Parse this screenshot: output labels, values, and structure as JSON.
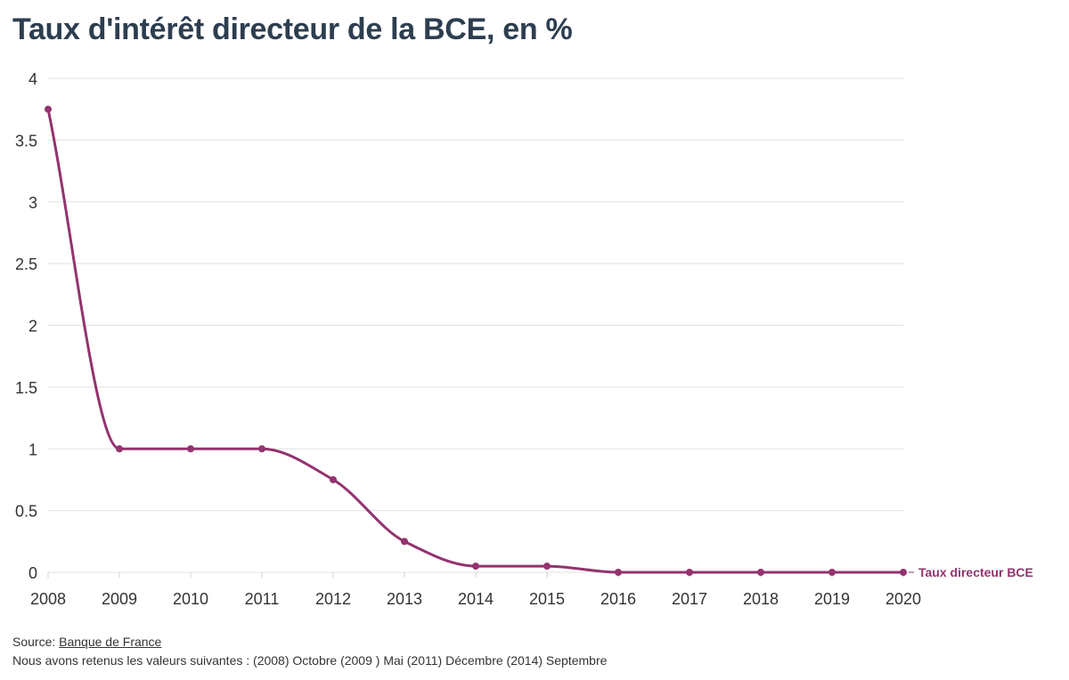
{
  "title": "Taux d'intérêt directeur de la BCE, en %",
  "source": {
    "prefix": "Source: ",
    "link_text": "Banque de France"
  },
  "note": "Nous avons retenus les valeurs suivantes : (2008) Octobre (2009 ) Mai (2011) Décembre (2014) Septembre",
  "colors": {
    "series": "#93336f",
    "grid": "#e6e6e6",
    "title": "#2d3e50"
  },
  "chart_data": {
    "type": "line",
    "title": "Taux d'intérêt directeur de la BCE, en %",
    "xlabel": "",
    "ylabel": "",
    "x": [
      2008,
      2009,
      2010,
      2011,
      2012,
      2013,
      2014,
      2015,
      2016,
      2017,
      2018,
      2019,
      2020
    ],
    "xlim": [
      2008,
      2020
    ],
    "ylim": [
      0,
      4
    ],
    "yticks": [
      0,
      0.5,
      1,
      1.5,
      2,
      2.5,
      3,
      3.5,
      4
    ],
    "ytick_labels": [
      "0",
      "0.5",
      "1",
      "1.5",
      "2",
      "2.5",
      "3",
      "3.5",
      "4"
    ],
    "grid": true,
    "series": [
      {
        "name": "Taux directeur BCE",
        "values": [
          3.75,
          1,
          1,
          1,
          0.75,
          0.25,
          0.05,
          0.05,
          0,
          0,
          0,
          0,
          0
        ]
      }
    ]
  }
}
